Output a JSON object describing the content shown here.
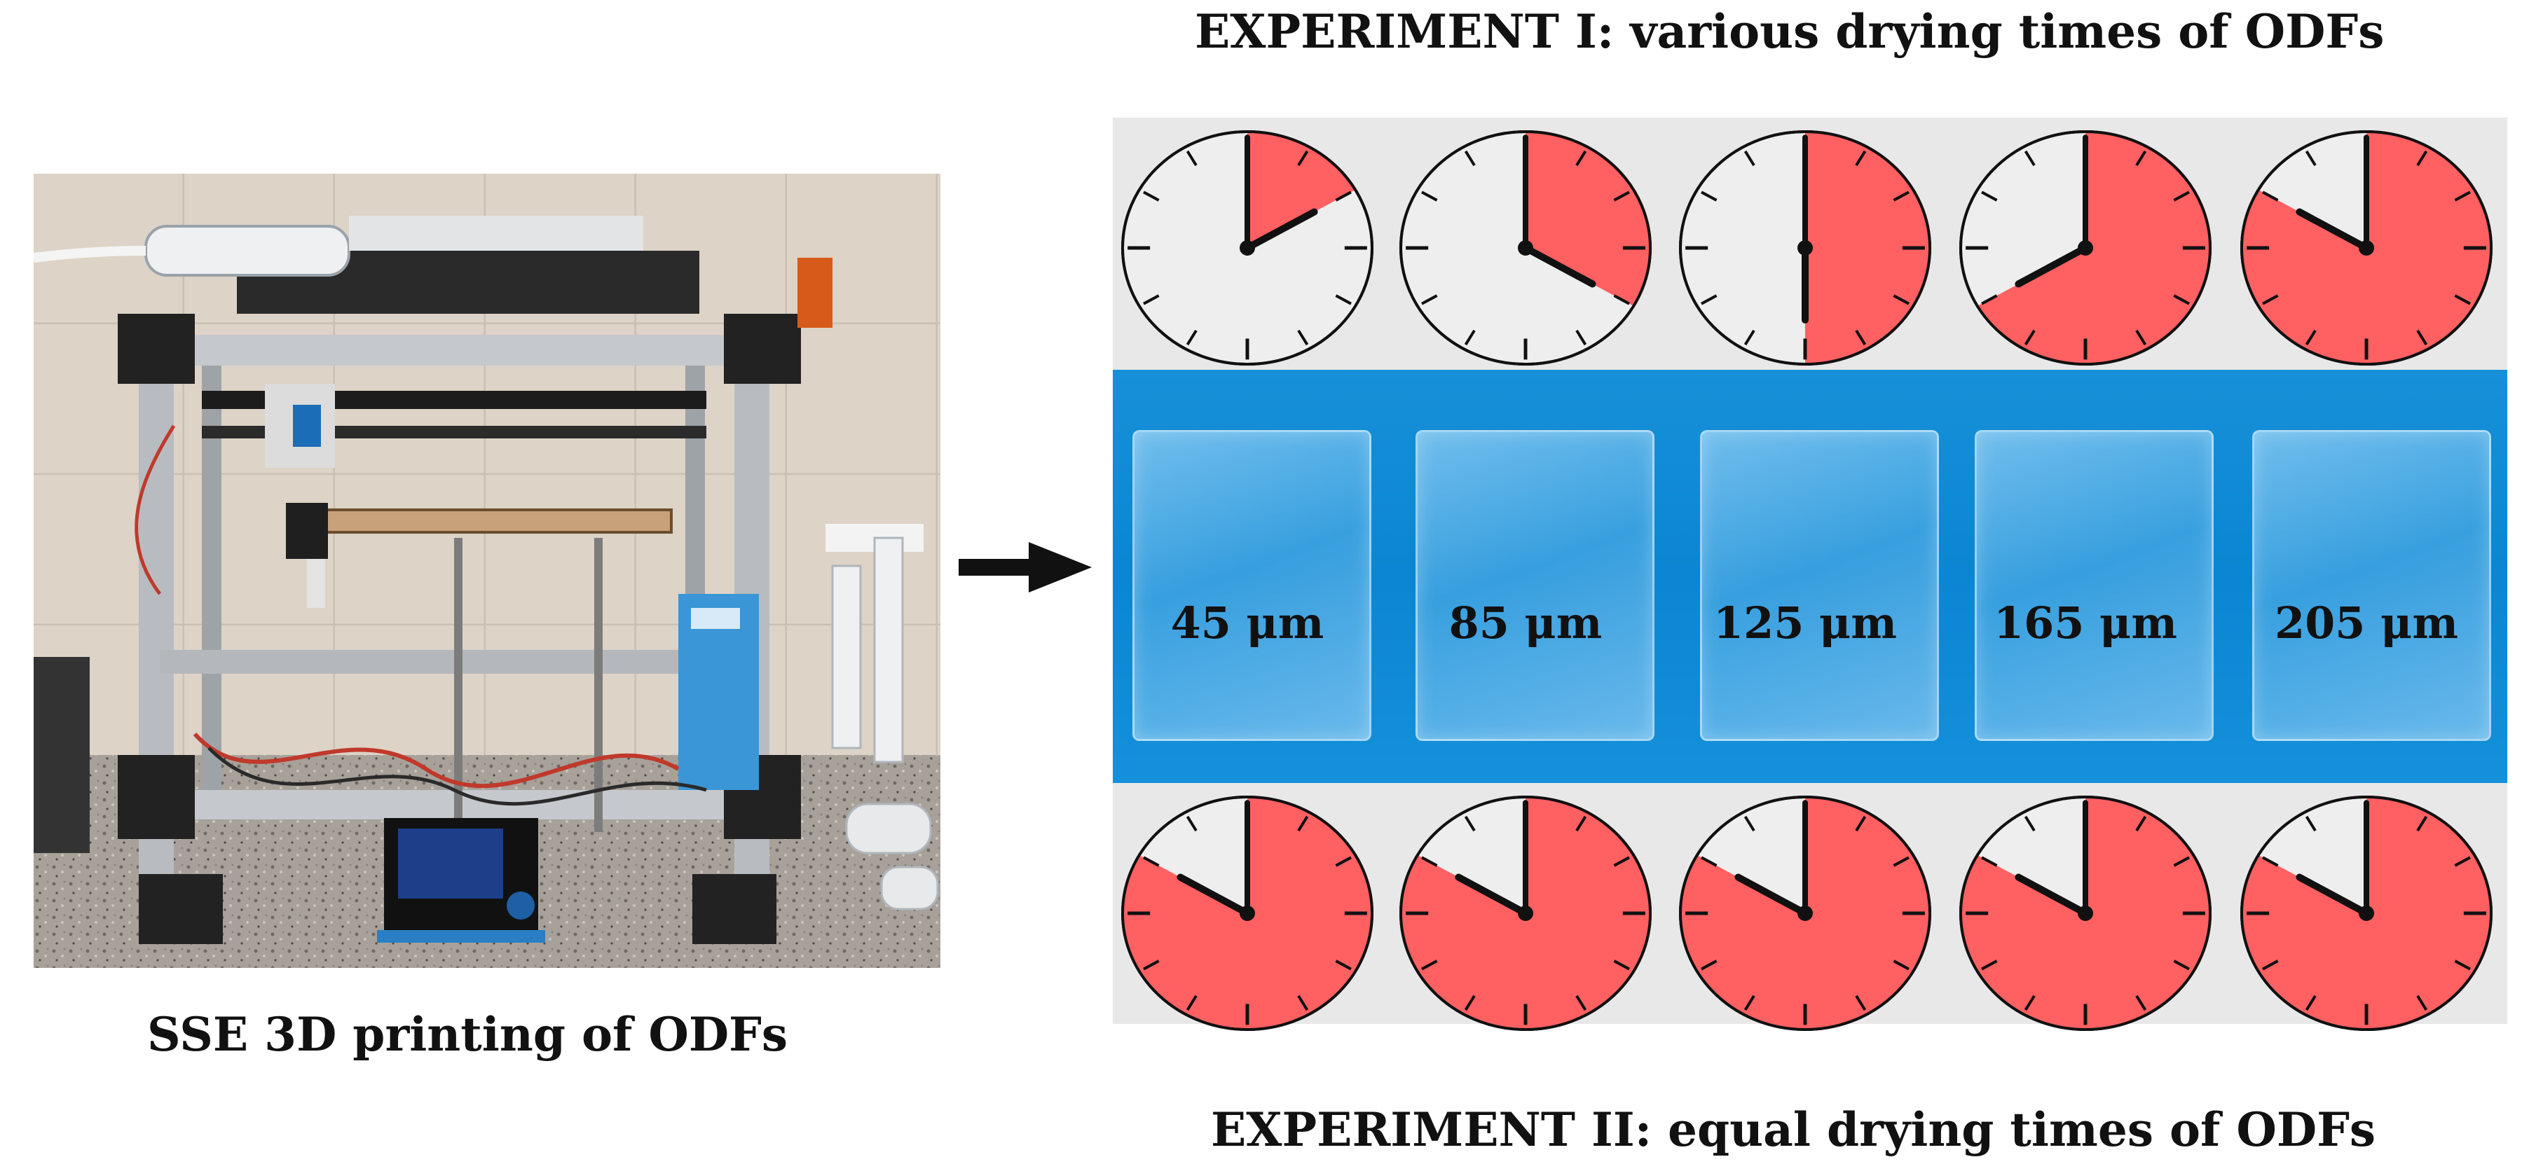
{
  "captions": {
    "experiment_1": "EXPERIMENT I: various drying times of ODFs",
    "experiment_2": "EXPERIMENT II: equal drying times of ODFs",
    "photo": "SSE 3D printing of ODFs"
  },
  "films": [
    {
      "thickness": "45 μm"
    },
    {
      "thickness": "85 μm"
    },
    {
      "thickness": "125 μm"
    },
    {
      "thickness": "165 μm"
    },
    {
      "thickness": "205 μm"
    }
  ],
  "experiment_1_clocks": [
    {
      "elapsed_minutes": 10
    },
    {
      "elapsed_minutes": 20
    },
    {
      "elapsed_minutes": 30
    },
    {
      "elapsed_minutes": 40
    },
    {
      "elapsed_minutes": 50
    }
  ],
  "experiment_2_clocks": [
    {
      "elapsed_minutes": 50
    },
    {
      "elapsed_minutes": 50
    },
    {
      "elapsed_minutes": 50
    },
    {
      "elapsed_minutes": 50
    },
    {
      "elapsed_minutes": 50
    }
  ],
  "colors": {
    "clock_fill": "#ff6062",
    "clock_face": "#eeeeee",
    "film_background": "#0a86d2",
    "panel_background": "#e8e8e8"
  }
}
